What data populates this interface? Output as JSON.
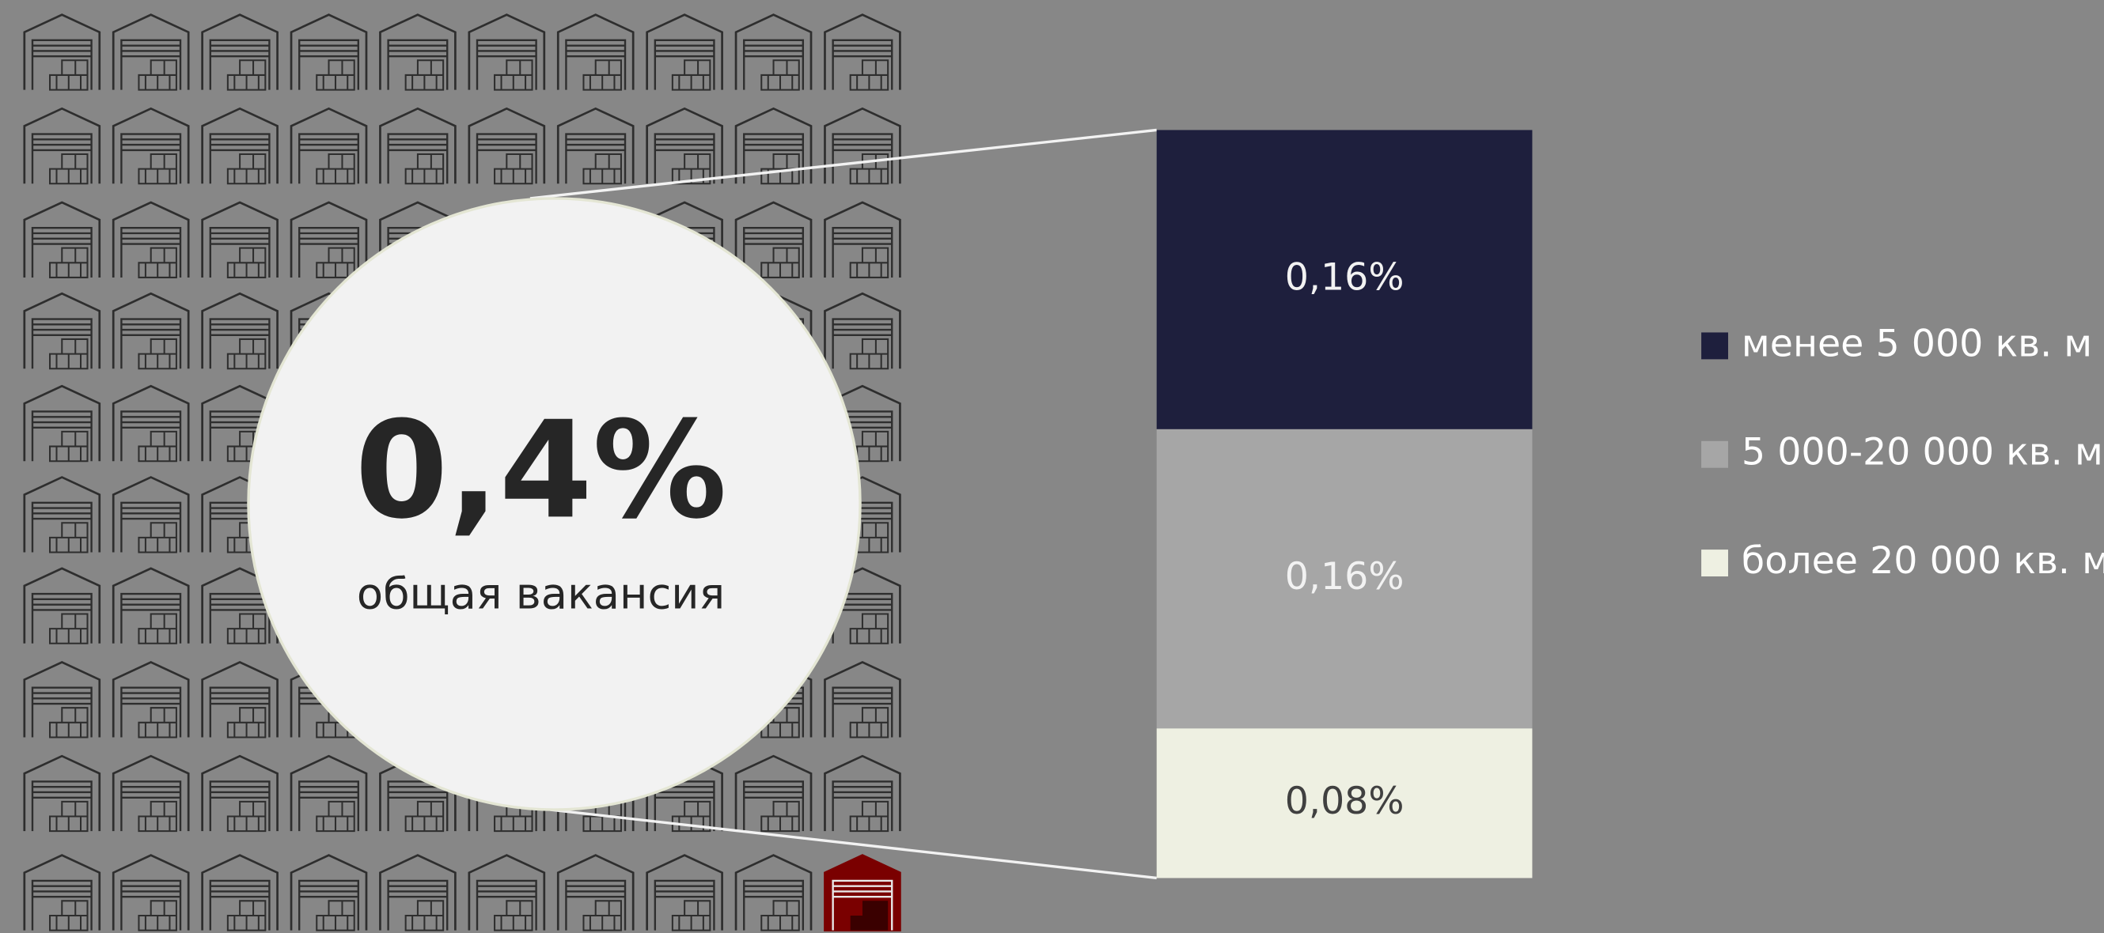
{
  "chart_data": {
    "type": "stacked_bar",
    "total_label": "0,4%",
    "total_caption": "общая вакансия",
    "ylim": [
      0,
      0.4
    ],
    "series": [
      {
        "name": "менее 5 000 кв. м",
        "color": "#1e1f3d",
        "values": [
          0.16
        ],
        "value_labels": [
          "0,16%"
        ]
      },
      {
        "name": "5 000-20 000 кв. м",
        "color": "#a6a6a6",
        "values": [
          0.16
        ],
        "value_labels": [
          "0,16%"
        ]
      },
      {
        "name": "более 20 000 кв. м",
        "color": "#eef0e2",
        "values": [
          0.08
        ],
        "value_labels": [
          "0,08%"
        ]
      }
    ]
  }
}
